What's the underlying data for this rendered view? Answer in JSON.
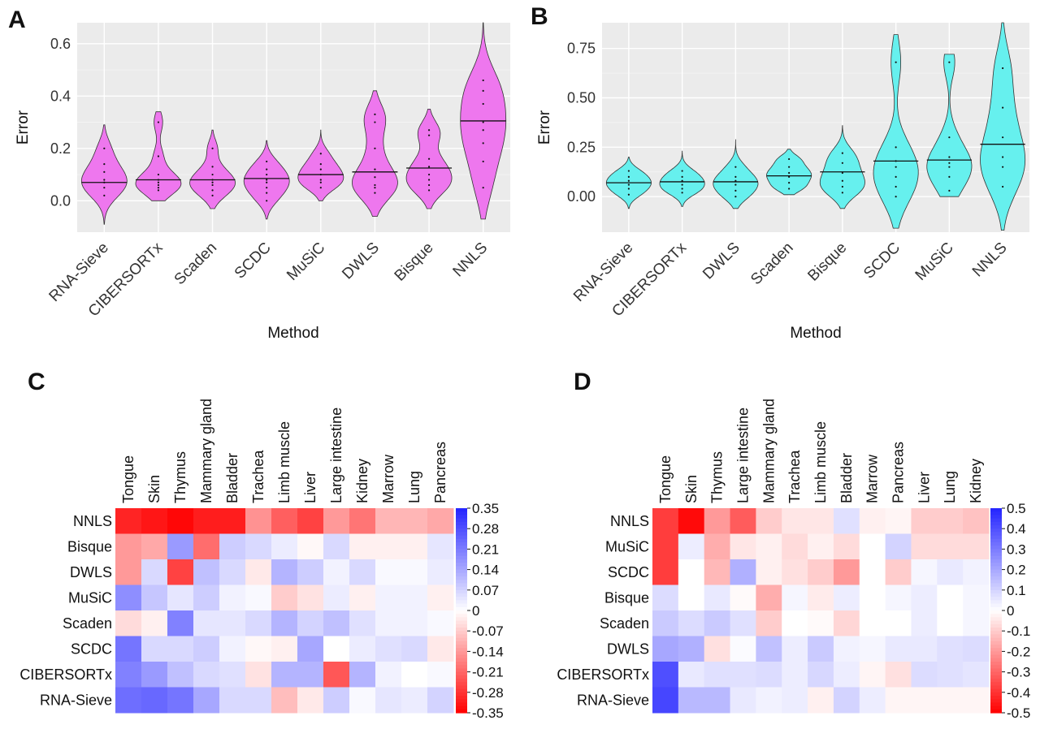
{
  "panels": {
    "a": "A",
    "b": "B",
    "c": "C",
    "d": "D"
  },
  "chart_data": [
    {
      "panel": "A",
      "type": "violin",
      "xlabel": "Method",
      "ylabel": "Error",
      "ylim": [
        -0.12,
        0.68
      ],
      "yticks": [
        0.0,
        0.2,
        0.4,
        0.6
      ],
      "ytick_labels": [
        "0.0",
        "0.2",
        "0.4",
        "0.6"
      ],
      "color": "#ee77ee",
      "categories": [
        "RNA-Sieve",
        "CIBERSORTx",
        "Scaden",
        "SCDC",
        "MuSiC",
        "DWLS",
        "Bisque",
        "NNLS"
      ],
      "medians": [
        0.07,
        0.08,
        0.08,
        0.085,
        0.1,
        0.11,
        0.125,
        0.305
      ],
      "ranges": [
        [
          -0.09,
          0.29
        ],
        [
          0.0,
          0.34
        ],
        [
          -0.03,
          0.27
        ],
        [
          -0.07,
          0.23
        ],
        [
          0.0,
          0.27
        ],
        [
          -0.06,
          0.42
        ],
        [
          -0.03,
          0.35
        ],
        [
          -0.07,
          0.68
        ]
      ],
      "points": [
        [
          0.02,
          0.05,
          0.07,
          0.08,
          0.11,
          0.14,
          0.2
        ],
        [
          0.04,
          0.05,
          0.06,
          0.07,
          0.08,
          0.1,
          0.17,
          0.3
        ],
        [
          0.02,
          0.04,
          0.06,
          0.07,
          0.08,
          0.1,
          0.13,
          0.2
        ],
        [
          0.0,
          0.03,
          0.05,
          0.07,
          0.08,
          0.1,
          0.12,
          0.15
        ],
        [
          0.05,
          0.07,
          0.08,
          0.1,
          0.12,
          0.14,
          0.18
        ],
        [
          0.03,
          0.05,
          0.06,
          0.09,
          0.12,
          0.2,
          0.3,
          0.33
        ],
        [
          0.04,
          0.06,
          0.08,
          0.1,
          0.13,
          0.16,
          0.25,
          0.27
        ],
        [
          0.05,
          0.15,
          0.22,
          0.27,
          0.3,
          0.37,
          0.42,
          0.46
        ]
      ]
    },
    {
      "panel": "B",
      "type": "violin",
      "xlabel": "Method",
      "ylabel": "Error",
      "ylim": [
        -0.18,
        0.88
      ],
      "yticks": [
        0.0,
        0.25,
        0.5,
        0.75
      ],
      "ytick_labels": [
        "0.00",
        "0.25",
        "0.50",
        "0.75"
      ],
      "color": "#66f0ee",
      "categories": [
        "RNA-Sieve",
        "CIBERSORTx",
        "DWLS",
        "Scaden",
        "Bisque",
        "SCDC",
        "MuSiC",
        "NNLS"
      ],
      "medians": [
        0.07,
        0.075,
        0.075,
        0.105,
        0.125,
        0.18,
        0.185,
        0.265
      ],
      "ranges": [
        [
          -0.06,
          0.2
        ],
        [
          -0.05,
          0.23
        ],
        [
          -0.06,
          0.29
        ],
        [
          0.01,
          0.24
        ],
        [
          -0.06,
          0.36
        ],
        [
          -0.16,
          0.82
        ],
        [
          0.0,
          0.72
        ],
        [
          -0.17,
          0.88
        ]
      ],
      "points": [
        [
          0.01,
          0.04,
          0.06,
          0.08,
          0.1,
          0.13
        ],
        [
          0.02,
          0.04,
          0.06,
          0.08,
          0.1,
          0.13
        ],
        [
          0.0,
          0.03,
          0.06,
          0.08,
          0.1,
          0.15
        ],
        [
          0.04,
          0.07,
          0.1,
          0.12,
          0.15,
          0.19
        ],
        [
          0.02,
          0.05,
          0.08,
          0.12,
          0.17,
          0.22
        ],
        [
          0.0,
          0.05,
          0.1,
          0.15,
          0.18,
          0.25,
          0.68
        ],
        [
          0.03,
          0.1,
          0.15,
          0.17,
          0.2,
          0.3,
          0.68
        ],
        [
          0.05,
          0.15,
          0.2,
          0.3,
          0.45,
          0.65
        ]
      ]
    },
    {
      "panel": "C",
      "type": "heatmap",
      "columns": [
        "Tongue",
        "Skin",
        "Thymus",
        "Mammary gland",
        "Bladder",
        "Trachea",
        "Limb muscle",
        "Liver",
        "Large intestine",
        "Kidney",
        "Marrow",
        "Lung",
        "Pancreas"
      ],
      "rows": [
        "NNLS",
        "Bisque",
        "DWLS",
        "MuSiC",
        "Scaden",
        "SCDC",
        "CIBERSORTx",
        "RNA-Sieve"
      ],
      "vmin": -0.35,
      "vmax": 0.35,
      "colorbar_ticks": [
        0.35,
        0.28,
        0.21,
        0.14,
        0.07,
        0,
        -0.07,
        -0.14,
        -0.21,
        -0.28,
        -0.35
      ],
      "colorbar_labels": [
        "0.35",
        "0.28",
        "0.21",
        "0.14",
        "0.07",
        "0",
        "-0.07",
        "-0.14",
        "-0.21",
        "-0.28",
        "-0.35"
      ],
      "values": [
        [
          -0.3,
          -0.32,
          -0.34,
          -0.31,
          -0.31,
          -0.15,
          -0.22,
          -0.26,
          -0.14,
          -0.19,
          -0.1,
          -0.1,
          -0.12
        ],
        [
          -0.14,
          -0.12,
          0.16,
          -0.2,
          0.08,
          0.06,
          0.03,
          -0.01,
          0.06,
          -0.02,
          -0.02,
          -0.02,
          0.04
        ],
        [
          -0.14,
          0.06,
          -0.26,
          0.1,
          0.06,
          -0.03,
          0.12,
          0.08,
          0.02,
          0.06,
          0.01,
          0.01,
          0.03
        ],
        [
          0.18,
          0.09,
          0.04,
          0.08,
          0.02,
          0.01,
          -0.07,
          -0.04,
          0.03,
          -0.02,
          0.02,
          0.02,
          -0.02
        ],
        [
          -0.05,
          -0.02,
          0.2,
          0.04,
          0.04,
          0.06,
          0.12,
          0.07,
          0.1,
          0.05,
          0.02,
          0.02,
          0.01
        ],
        [
          0.22,
          0.06,
          0.06,
          0.08,
          0.02,
          -0.01,
          -0.02,
          0.14,
          0.0,
          0.03,
          0.05,
          0.06,
          -0.03
        ],
        [
          0.2,
          0.16,
          0.1,
          0.06,
          0.05,
          -0.04,
          0.12,
          0.12,
          -0.23,
          0.12,
          0.02,
          0.0,
          0.01
        ],
        [
          0.23,
          0.24,
          0.22,
          0.14,
          0.06,
          0.06,
          -0.09,
          -0.03,
          0.08,
          0.01,
          0.04,
          0.03,
          0.07
        ]
      ]
    },
    {
      "panel": "D",
      "type": "heatmap",
      "columns": [
        "Tongue",
        "Skin",
        "Thymus",
        "Large intestine",
        "Mammary gland",
        "Trachea",
        "Limb muscle",
        "Bladder",
        "Marrow",
        "Pancreas",
        "Liver",
        "Lung",
        "Kidney"
      ],
      "rows": [
        "NNLS",
        "MuSiC",
        "SCDC",
        "Bisque",
        "Scaden",
        "DWLS",
        "CIBERSORTx",
        "RNA-Sieve"
      ],
      "vmin": -0.5,
      "vmax": 0.5,
      "colorbar_ticks": [
        0.5,
        0.4,
        0.3,
        0.2,
        0.1,
        0,
        -0.1,
        -0.2,
        -0.3,
        -0.4,
        -0.5
      ],
      "colorbar_labels": [
        "0.5",
        "0.4",
        "0.3",
        "0.2",
        "0.1",
        "0",
        "-0.1",
        "-0.2",
        "-0.3",
        "-0.4",
        "-0.5"
      ],
      "values": [
        [
          -0.38,
          -0.48,
          -0.2,
          -0.32,
          -0.1,
          -0.05,
          -0.05,
          0.07,
          -0.03,
          -0.02,
          -0.1,
          -0.1,
          -0.12
        ],
        [
          -0.38,
          0.04,
          -0.16,
          -0.05,
          -0.03,
          -0.07,
          -0.03,
          -0.07,
          0.0,
          0.1,
          -0.07,
          -0.07,
          -0.07
        ],
        [
          -0.38,
          0.0,
          -0.14,
          0.18,
          -0.03,
          -0.06,
          -0.1,
          -0.2,
          0.0,
          -0.1,
          0.02,
          0.05,
          0.03
        ],
        [
          0.08,
          0.0,
          0.05,
          -0.01,
          -0.16,
          0.02,
          -0.04,
          0.04,
          0.0,
          0.02,
          0.04,
          0.0,
          0.02
        ],
        [
          0.12,
          0.08,
          0.12,
          0.07,
          -0.1,
          0.0,
          -0.01,
          -0.08,
          0.0,
          0.0,
          0.04,
          0.0,
          0.02
        ],
        [
          0.2,
          0.18,
          -0.06,
          0.01,
          0.14,
          0.04,
          0.12,
          0.03,
          0.02,
          0.05,
          0.05,
          0.07,
          0.08
        ],
        [
          0.4,
          0.05,
          0.07,
          0.07,
          0.08,
          0.04,
          0.09,
          0.04,
          -0.02,
          -0.06,
          0.08,
          0.07,
          0.06
        ],
        [
          0.42,
          0.16,
          0.16,
          0.05,
          0.03,
          0.04,
          -0.03,
          0.1,
          0.04,
          -0.02,
          -0.02,
          -0.02,
          -0.02
        ]
      ]
    }
  ]
}
